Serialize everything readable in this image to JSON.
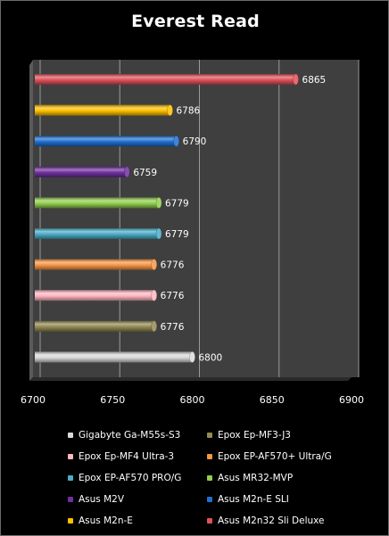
{
  "chart_data": {
    "type": "bar",
    "orientation": "horizontal",
    "title": "Everest Read",
    "xlim": [
      6700,
      6900
    ],
    "x_ticks": [
      6700,
      6750,
      6800,
      6850,
      6900
    ],
    "grid": true,
    "legend_position": "bottom",
    "series": [
      {
        "name": "Asus M2n32 Sli Deluxe",
        "value": 6865,
        "value_label": "6865",
        "color": "#e0525a"
      },
      {
        "name": "Asus M2n-E",
        "value": 6786,
        "value_label": "6786",
        "color": "#ffc000"
      },
      {
        "name": "Asus M2n-E SLI",
        "value": 6790,
        "value_label": "6790",
        "color": "#1f6fd0"
      },
      {
        "name": "Asus M2V",
        "value": 6759,
        "value_label": "6759",
        "color": "#7030a0"
      },
      {
        "name": "Asus MR32-MVP",
        "value": 6779,
        "value_label": "6779",
        "color": "#92d050"
      },
      {
        "name": "Epox EP-AF570 PRO/G",
        "value": 6779,
        "value_label": "6779",
        "color": "#4bacc6"
      },
      {
        "name": "Epox EP-AF570+ Ultra/G",
        "value": 6776,
        "value_label": "6776",
        "color": "#f79646"
      },
      {
        "name": "Epox Ep-MF4 Ultra-3",
        "value": 6776,
        "value_label": "6776",
        "color": "#ffb6c1"
      },
      {
        "name": "Epox Ep-MF3-J3",
        "value": 6776,
        "value_label": "6776",
        "color": "#948a54"
      },
      {
        "name": "Gigabyte Ga-M55s-S3",
        "value": 6800,
        "value_label": "6800",
        "color": "#d9d9d9"
      }
    ],
    "legend_order": [
      "Gigabyte Ga-M55s-S3",
      "Epox Ep-MF3-J3",
      "Epox Ep-MF4 Ultra-3",
      "Epox EP-AF570+ Ultra/G",
      "Epox EP-AF570 PRO/G",
      "Asus MR32-MVP",
      "Asus M2V",
      "Asus M2n-E SLI",
      "Asus M2n-E",
      "Asus M2n32 Sli Deluxe"
    ]
  }
}
